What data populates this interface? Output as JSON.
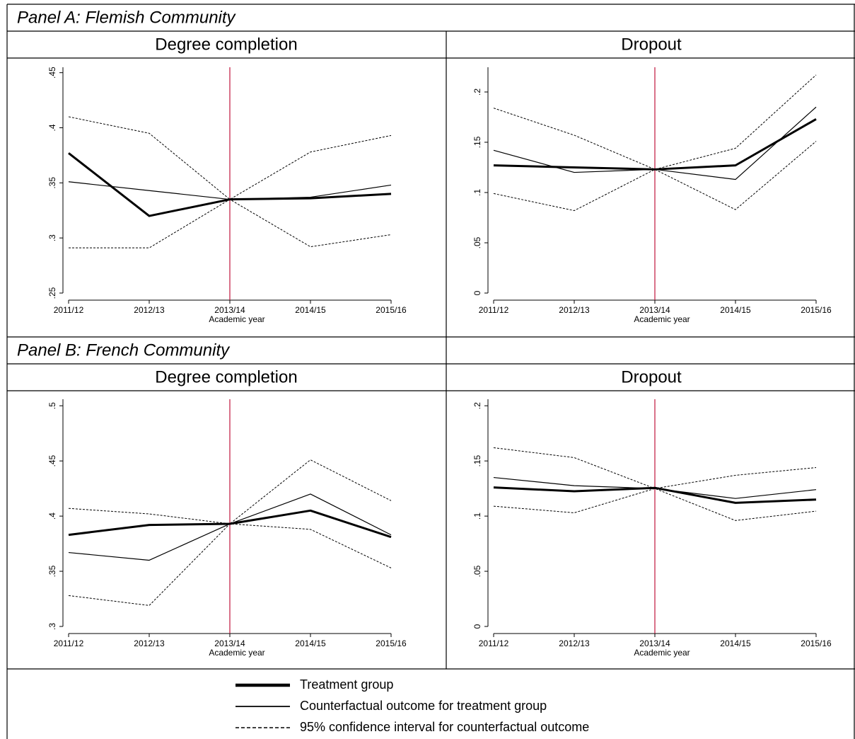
{
  "panels": [
    {
      "label": "Panel A: Flemish Community"
    },
    {
      "label": "Panel B: French Community"
    }
  ],
  "chart_data": [
    {
      "type": "line",
      "title": "Degree completion",
      "x_label": "Academic year",
      "categories": [
        "2011/12",
        "2012/13",
        "2013/14",
        "2014/15",
        "2015/16"
      ],
      "ylim": [
        0.25,
        0.453
      ],
      "yticks": [
        {
          "value": 0.25,
          "label": ".25"
        },
        {
          "value": 0.3,
          "label": ".3"
        },
        {
          "value": 0.35,
          "label": ".35"
        },
        {
          "value": 0.4,
          "label": ".4"
        },
        {
          "value": 0.45,
          "label": ".45"
        }
      ],
      "vline": "2013/14",
      "vline_color": "#c0143c",
      "series": [
        {
          "name": "Treatment group",
          "color": "#000000",
          "line_width": 3,
          "values": [
            0.377,
            0.32,
            0.335,
            0.336,
            0.34
          ]
        },
        {
          "name": "Counterfactual outcome for treatment group",
          "color": "#000000",
          "line_width": 1.2,
          "values": [
            0.351,
            0.343,
            0.335,
            0.337,
            0.348
          ]
        },
        {
          "name": "95% confidence interval for counterfactual outcome",
          "color": "#000000",
          "line_width": 1,
          "dashed": true,
          "lower": [
            0.291,
            0.291,
            0.335,
            0.292,
            0.303
          ],
          "upper": [
            0.41,
            0.395,
            0.335,
            0.378,
            0.393
          ]
        }
      ]
    },
    {
      "type": "line",
      "title": "Dropout",
      "x_label": "Academic year",
      "categories": [
        "2011/12",
        "2012/13",
        "2013/14",
        "2014/15",
        "2015/16"
      ],
      "ylim": [
        0,
        0.2225
      ],
      "yticks": [
        0,
        {
          "value": 0.05,
          "label": ".05"
        },
        {
          "value": 0.1,
          "label": ".1"
        },
        {
          "value": 0.15,
          "label": ".15"
        },
        {
          "value": 0.2,
          "label": ".2"
        }
      ],
      "vline": "2013/14",
      "vline_color": "#c0143c",
      "series": [
        {
          "name": "Treatment group",
          "color": "#000000",
          "line_width": 3,
          "values": [
            0.127,
            0.125,
            0.123,
            0.127,
            0.173
          ]
        },
        {
          "name": "Counterfactual outcome for treatment group",
          "color": "#000000",
          "line_width": 1.2,
          "values": [
            0.142,
            0.12,
            0.123,
            0.113,
            0.185
          ]
        },
        {
          "name": "95% confidence interval for counterfactual outcome",
          "color": "#000000",
          "line_width": 1,
          "dashed": true,
          "lower": [
            0.099,
            0.082,
            0.123,
            0.083,
            0.151
          ],
          "upper": [
            0.184,
            0.157,
            0.123,
            0.144,
            0.217
          ]
        }
      ]
    },
    {
      "type": "line",
      "title": "Degree completion",
      "x_label": "Academic year",
      "categories": [
        "2011/12",
        "2012/13",
        "2013/14",
        "2014/15",
        "2015/16"
      ],
      "ylim": [
        0.3,
        0.504
      ],
      "yticks": [
        {
          "value": 0.3,
          "label": ".3"
        },
        {
          "value": 0.35,
          "label": ".35"
        },
        {
          "value": 0.4,
          "label": ".4"
        },
        {
          "value": 0.45,
          "label": ".45"
        },
        {
          "value": 0.5,
          "label": ".5"
        }
      ],
      "vline": "2013/14",
      "vline_color": "#c0143c",
      "series": [
        {
          "name": "Treatment group",
          "color": "#000000",
          "line_width": 3,
          "values": [
            0.383,
            0.392,
            0.393,
            0.405,
            0.381
          ]
        },
        {
          "name": "Counterfactual outcome for treatment group",
          "color": "#000000",
          "line_width": 1.2,
          "values": [
            0.367,
            0.36,
            0.393,
            0.42,
            0.383
          ]
        },
        {
          "name": "95% confidence interval for counterfactual outcome",
          "color": "#000000",
          "line_width": 1,
          "dashed": true,
          "lower": [
            0.328,
            0.319,
            0.393,
            0.388,
            0.353
          ],
          "upper": [
            0.407,
            0.402,
            0.393,
            0.451,
            0.414
          ]
        }
      ]
    },
    {
      "type": "line",
      "title": "Dropout",
      "x_label": "Academic year",
      "categories": [
        "2011/12",
        "2012/13",
        "2013/14",
        "2014/15",
        "2015/16"
      ],
      "ylim": [
        0,
        0.204
      ],
      "yticks": [
        0,
        {
          "value": 0.05,
          "label": ".05"
        },
        {
          "value": 0.1,
          "label": ".1"
        },
        {
          "value": 0.15,
          "label": ".15"
        },
        {
          "value": 0.2,
          "label": ".2"
        }
      ],
      "vline": "2013/14",
      "vline_color": "#c0143c",
      "series": [
        {
          "name": "Treatment group",
          "color": "#000000",
          "line_width": 3,
          "values": [
            0.126,
            0.1225,
            0.1256,
            0.112,
            0.115
          ]
        },
        {
          "name": "Counterfactual outcome for treatment group",
          "color": "#000000",
          "line_width": 1.2,
          "values": [
            0.135,
            0.1276,
            0.125,
            0.116,
            0.124
          ]
        },
        {
          "name": "95% confidence interval for counterfactual outcome",
          "color": "#000000",
          "line_width": 1,
          "dashed": true,
          "lower": [
            0.109,
            0.103,
            0.125,
            0.096,
            0.1045
          ],
          "upper": [
            0.162,
            0.153,
            0.125,
            0.137,
            0.144
          ]
        }
      ]
    }
  ]
}
